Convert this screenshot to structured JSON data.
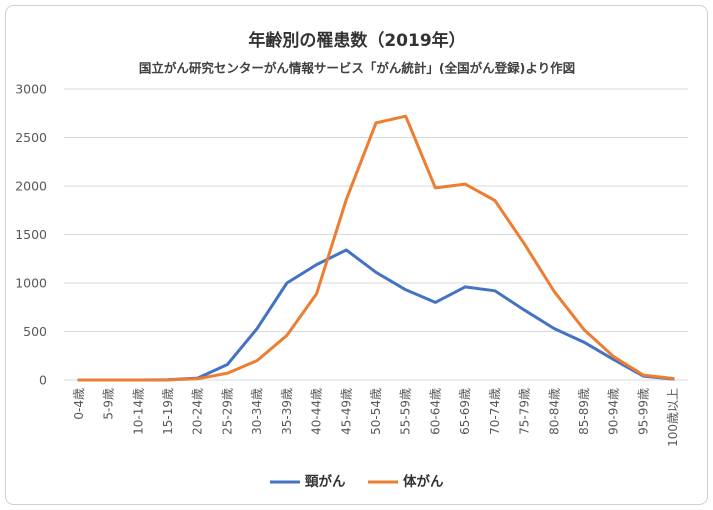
{
  "chart_data": {
    "type": "line",
    "title": "年齢別の罹患数（2019年）",
    "subtitle": "国立がん研究センターがん情報サービス「がん統計」(全国がん登録)より作図",
    "categories": [
      "0-4歳",
      "5-9歳",
      "10-14歳",
      "15-19歳",
      "20-24歳",
      "25-29歳",
      "30-34歳",
      "35-39歳",
      "40-44歳",
      "45-49歳",
      "50-54歳",
      "55-59歳",
      "60-64歳",
      "65-69歳",
      "70-74歳",
      "75-79歳",
      "80-84歳",
      "85-89歳",
      "90-94歳",
      "95-99歳",
      "100歳以上"
    ],
    "ylim": [
      0,
      3000
    ],
    "yticks": [
      0,
      500,
      1000,
      1500,
      2000,
      2500,
      3000
    ],
    "grid": "horizontal",
    "legend": "bottom",
    "series": [
      {
        "name": "頸がん",
        "color": "#4472C4",
        "values": [
          0,
          0,
          0,
          2,
          20,
          160,
          530,
          1000,
          1190,
          1340,
          1110,
          930,
          800,
          960,
          920,
          720,
          530,
          390,
          210,
          40,
          10
        ]
      },
      {
        "name": "体がん",
        "color": "#ED7D31",
        "values": [
          0,
          0,
          0,
          1,
          12,
          70,
          200,
          460,
          890,
          1860,
          2650,
          2720,
          1980,
          2020,
          1850,
          1400,
          910,
          520,
          240,
          50,
          15
        ]
      }
    ]
  }
}
